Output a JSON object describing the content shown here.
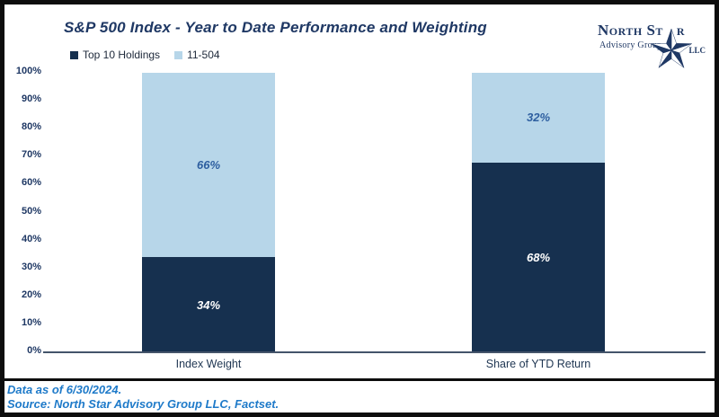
{
  "chart_data": {
    "type": "bar",
    "stacked": true,
    "title": "S&P 500 Index - Year to Date Performance and Weighting",
    "categories": [
      "Index Weight",
      "Share of YTD Return"
    ],
    "series": [
      {
        "name": "Top 10 Holdings",
        "color": "#16304F",
        "label_color": "#FFFFFF",
        "values": [
          34,
          68
        ]
      },
      {
        "name": "11-504",
        "color": "#B7D6E9",
        "label_color": "#2E5FA0",
        "values": [
          66,
          32
        ]
      }
    ],
    "xlabel": "",
    "ylabel": "",
    "ylim": [
      0,
      100
    ],
    "ytick_labels": [
      "0%",
      "10%",
      "20%",
      "30%",
      "40%",
      "50%",
      "60%",
      "70%",
      "80%",
      "90%",
      "100%"
    ],
    "grid": false,
    "legend_position": "top-left",
    "data_label_format": "percent"
  },
  "logo": {
    "name_part1": "North St",
    "name_part2": "r",
    "subtitle": "Advisory Group",
    "suffix": "LLC",
    "star_icon": "nautical-star"
  },
  "footer": {
    "data_as_of": "Data as of 6/30/2024.",
    "source": "Source: North Star Advisory Group LLC, Factset."
  },
  "colors": {
    "navy_bar": "#16304F",
    "light_blue_bar": "#B7D6E9",
    "title_navy": "#1F3864",
    "footer_blue": "#1E7AC9",
    "axis_line": "#44546A",
    "border_black": "#0d0d0d"
  }
}
